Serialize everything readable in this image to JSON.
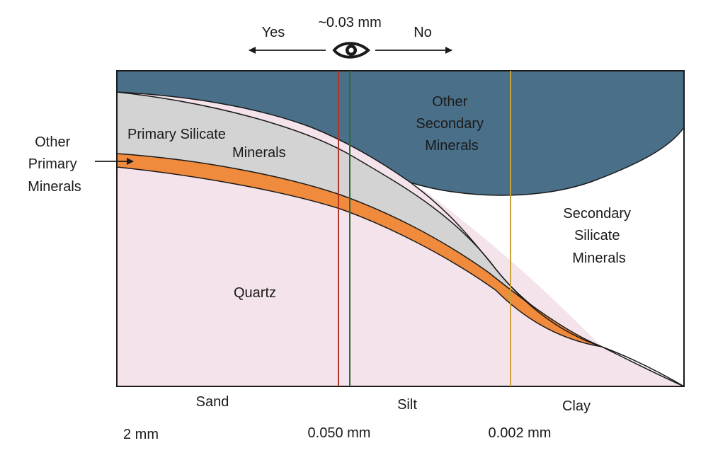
{
  "eye_indicator": {
    "threshold": "~0.03 mm",
    "left": "Yes",
    "right": "No"
  },
  "regions": {
    "other_secondary": [
      "Other",
      "Secondary",
      "Minerals"
    ],
    "primary_silicate": [
      "Primary Silicate",
      "Minerals"
    ],
    "other_primary": [
      "Other",
      "Primary",
      "Minerals"
    ],
    "quartz": "Quartz",
    "secondary_silicate": [
      "Secondary",
      "Silicate",
      "Minerals"
    ]
  },
  "size_classes": [
    "Sand",
    "Silt",
    "Clay"
  ],
  "size_limits": [
    "2 mm",
    "0.050 mm",
    "0.002 mm"
  ],
  "colors": {
    "other_secondary": "#4a6f89",
    "primary_silicate": "#d3d3d3",
    "other_primary": "#f08a3c",
    "quartz": "#f5e3ec",
    "secondary_silicate": "#ffffff",
    "line_red": "#b0332a",
    "line_green": "#2e6b3a",
    "line_gold": "#c9a13a"
  }
}
